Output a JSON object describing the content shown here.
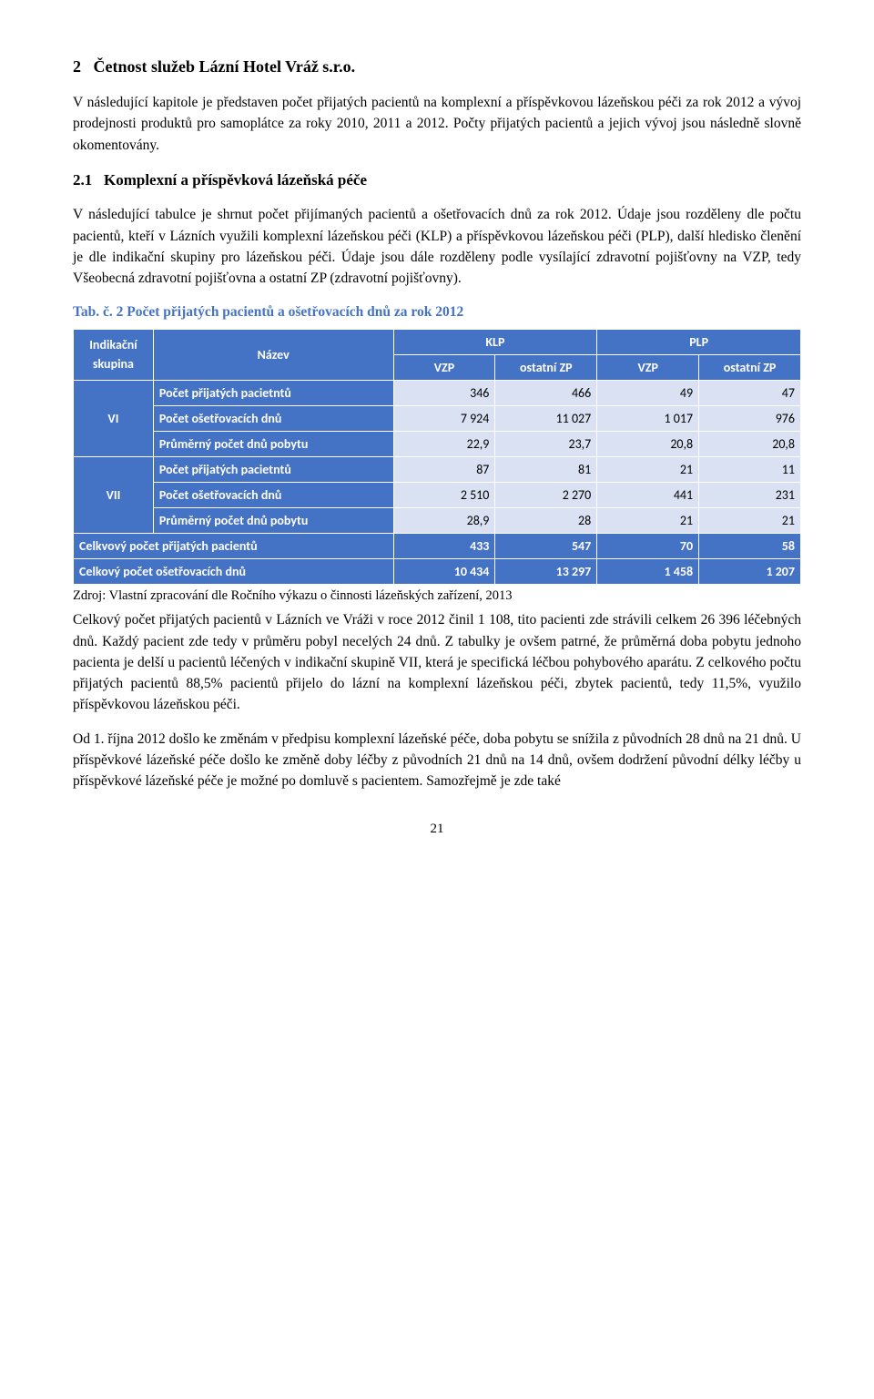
{
  "section": {
    "number": "2",
    "title": "Četnost služeb Lázní Hotel Vráž s.r.o."
  },
  "para1": "V následující kapitole je představen počet přijatých pacientů na komplexní a příspěvkovou lázeňskou péči za rok 2012 a vývoj prodejnosti produktů pro samoplátce za roky 2010, 2011 a 2012. Počty přijatých pacientů a jejich vývoj jsou následně slovně okomentovány.",
  "subsection": {
    "number": "2.1",
    "title": "Komplexní a příspěvková lázeňská péče"
  },
  "para2": "V následující tabulce je shrnut počet přijímaných pacientů a ošetřovacích dnů za rok 2012. Údaje jsou rozděleny dle počtu pacientů, kteří v Lázních využili komplexní lázeňskou péči (KLP) a příspěvkovou lázeňskou péči (PLP), další hledisko členění je dle indikační skupiny pro lázeňskou péči. Údaje jsou dále rozděleny podle vysílající zdravotní pojišťovny na VZP, tedy Všeobecná zdravotní pojišťovna a ostatní ZP (zdravotní pojišťovny).",
  "tab_caption": "Tab. č. 2 Počet přijatých pacientů a ošetřovacích dnů za rok 2012",
  "table": {
    "colors": {
      "header_bg": "#4472c4",
      "header_fg": "#ffffff",
      "value_bg": "#d9e1f2",
      "value_fg": "#000000",
      "border": "#ffffff"
    },
    "header": {
      "indik": "Indikační skupina",
      "nazev": "Název",
      "klp": "KLP",
      "plp": "PLP",
      "vzp": "VZP",
      "ozp": "ostatní ZP"
    },
    "rows": {
      "r_prijati": "Počet přijatých pacietntů",
      "r_osetr": "Počet ošetřovacích dnů",
      "r_prum": "Průměrný počet dnů pobytu"
    },
    "groups": {
      "vi": {
        "label": "VI",
        "prijati": [
          "346",
          "466",
          "49",
          "47"
        ],
        "osetr": [
          "7 924",
          "11 027",
          "1 017",
          "976"
        ],
        "prum": [
          "22,9",
          "23,7",
          "20,8",
          "20,8"
        ]
      },
      "vii": {
        "label": "VII",
        "prijati": [
          "87",
          "81",
          "21",
          "11"
        ],
        "osetr": [
          "2 510",
          "2 270",
          "441",
          "231"
        ],
        "prum": [
          "28,9",
          "28",
          "21",
          "21"
        ]
      }
    },
    "totals": {
      "t1_label": "Celkvový počet přijatých pacientů",
      "t1_vals": [
        "433",
        "547",
        "70",
        "58"
      ],
      "t2_label": "Celkový počet ošetřovacích dnů",
      "t2_vals": [
        "10 434",
        "13 297",
        "1 458",
        "1 207"
      ]
    }
  },
  "source": "Zdroj: Vlastní zpracování dle Ročního výkazu o činnosti lázeňských zařízení, 2013",
  "para3": "Celkový počet přijatých pacientů v Lázních ve Vráži v roce 2012 činil 1 108, tito pacienti zde strávili celkem 26 396 léčebných dnů. Každý pacient zde tedy v průměru pobyl necelých 24 dnů. Z tabulky je ovšem patrné, že průměrná doba pobytu jednoho pacienta je delší u pacientů léčených v indikační skupině VII, která je specifická léčbou pohybového aparátu. Z celkového počtu přijatých pacientů 88,5% pacientů přijelo do lázní na komplexní lázeňskou péči, zbytek pacientů, tedy 11,5%, využilo příspěvkovou lázeňskou péči.",
  "para4": "Od 1. října 2012 došlo ke změnám v předpisu komplexní lázeňské péče, doba pobytu se snížila z původních 28 dnů na 21 dnů. U příspěvkové lázeňské péče došlo ke změně doby léčby z původních 21 dnů na 14 dnů, ovšem dodržení původní délky léčby u příspěvkové lázeňské péče je možné po domluvě s pacientem. Samozřejmě je zde také",
  "page_number": "21"
}
